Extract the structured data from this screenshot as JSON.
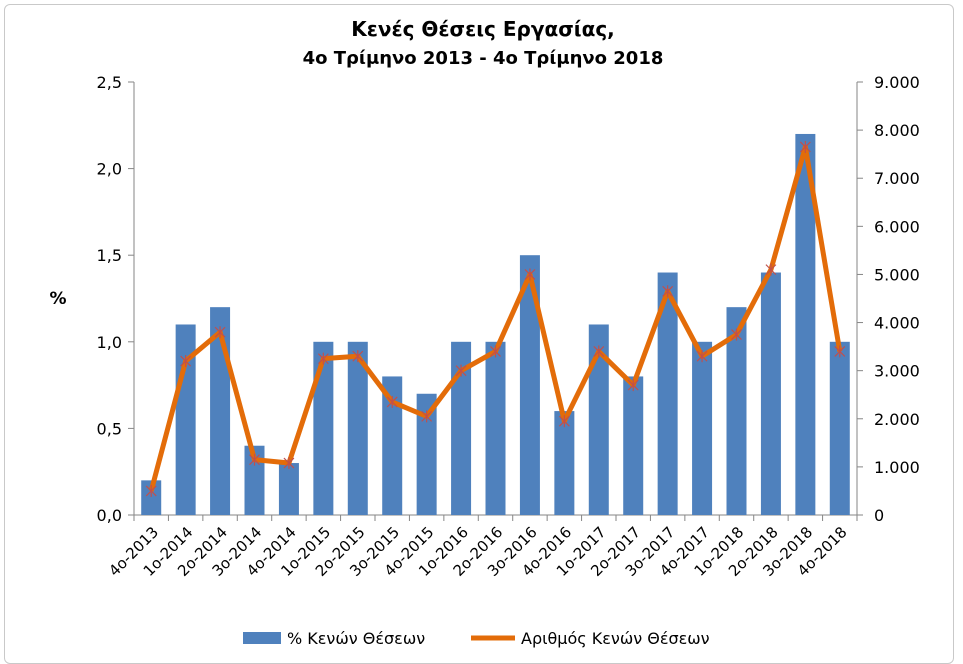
{
  "chart_data": {
    "type": "bar",
    "title": "Κενές Θέσεις Εργασίας,",
    "subtitle": "4ο Τρίμηνο  2013 - 4ο Τρίμηνο  2018",
    "ylabel": "%",
    "categories": [
      "4ο-2013",
      "1ο-2014",
      "2ο-2014",
      "3ο-2014",
      "4ο-2014",
      "1ο-2015",
      "2ο-2015",
      "3ο-2015",
      "4ο-2015",
      "1ο-2016",
      "2ο-2016",
      "3ο-2016",
      "4ο-2016",
      "1ο-2017",
      "2ο-2017",
      "3ο-2017",
      "4ο-2017",
      "1ο-2018",
      "2ο-2018",
      "3ο-2018",
      "4ο-2018"
    ],
    "series": [
      {
        "name": "% Κενών  Θέσεων",
        "type": "bar",
        "axis": "left",
        "color": "#4f81bd",
        "values": [
          0.2,
          1.1,
          1.2,
          0.4,
          0.3,
          1.0,
          1.0,
          0.8,
          0.7,
          1.0,
          1.0,
          1.5,
          0.6,
          1.1,
          0.8,
          1.4,
          1.0,
          1.2,
          1.4,
          2.2,
          1.0
        ]
      },
      {
        "name": "Αριθμός Κενών Θέσεων",
        "type": "line",
        "axis": "right",
        "color": "#e36c09",
        "values": [
          500,
          3200,
          3800,
          1150,
          1080,
          3250,
          3300,
          2350,
          2050,
          3000,
          3400,
          5000,
          1950,
          3400,
          2700,
          4650,
          3300,
          3750,
          5100,
          7650,
          3400
        ]
      }
    ],
    "y_left": {
      "range": [
        0,
        2.5
      ],
      "ticks": [
        "0,0",
        "0,5",
        "1,0",
        "1,5",
        "2,0",
        "2,5"
      ]
    },
    "y_right": {
      "range": [
        0,
        9000
      ],
      "ticks": [
        "0",
        "1.000",
        "2.000",
        "3.000",
        "4.000",
        "5.000",
        "6.000",
        "7.000",
        "8.000",
        "9.000"
      ]
    },
    "grid": false,
    "legend_position": "bottom"
  }
}
